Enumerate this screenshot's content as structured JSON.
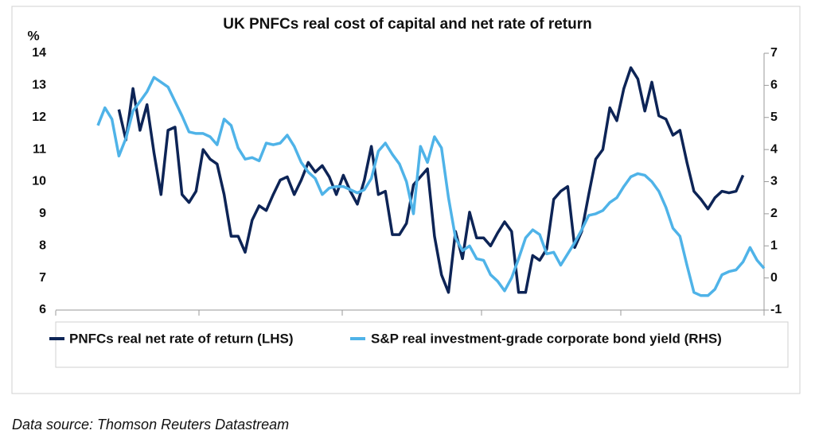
{
  "chart_data": {
    "type": "line",
    "title": "UK PNFCs real cost of capital and net rate of return",
    "ylabel": "%",
    "source": "Data source: Thomson Reuters Datastream",
    "categories": [
      null,
      null,
      null,
      null,
      null,
      null,
      null,
      null,
      null,
      null,
      null,
      null,
      null,
      null,
      null,
      null,
      null,
      null,
      null,
      null,
      null,
      null,
      null,
      null,
      null,
      null,
      null,
      null,
      null,
      null,
      null,
      null,
      null,
      null,
      null,
      null,
      null,
      null,
      null,
      null,
      null,
      null,
      null,
      null,
      null,
      null,
      null,
      null,
      null,
      null,
      null,
      null,
      null,
      null,
      null,
      null,
      null,
      null,
      null,
      null,
      null,
      null,
      null,
      null,
      null,
      null,
      null,
      null,
      null,
      null,
      null,
      null,
      null,
      null,
      null,
      null,
      null,
      null,
      null,
      null,
      null,
      null,
      null,
      null,
      null,
      null,
      null,
      null,
      null,
      null,
      null,
      null,
      null,
      null,
      null,
      null
    ],
    "ylim": [
      6,
      14
    ],
    "yticks": [
      6,
      7,
      8,
      9,
      10,
      11,
      12,
      13,
      14
    ],
    "y2lim": [
      -1,
      7
    ],
    "y2ticks": [
      -1,
      0,
      1,
      2,
      3,
      4,
      5,
      6,
      7
    ],
    "series": [
      {
        "name": "PNFCs real net rate of return (LHS)",
        "color": "#0d2456",
        "axis": "y",
        "values": [
          null,
          null,
          null,
          12.25,
          11.3,
          12.9,
          11.6,
          12.4,
          10.9,
          9.6,
          11.6,
          11.7,
          9.6,
          9.35,
          9.7,
          11.0,
          10.7,
          10.55,
          9.6,
          8.3,
          8.3,
          7.8,
          8.8,
          9.25,
          9.1,
          9.6,
          10.05,
          10.15,
          9.6,
          10.05,
          10.6,
          10.3,
          10.5,
          10.15,
          9.6,
          10.2,
          9.7,
          9.3,
          10.05,
          11.1,
          9.6,
          9.7,
          8.35,
          8.35,
          8.7,
          9.9,
          10.15,
          10.4,
          8.3,
          7.1,
          6.55,
          8.45,
          7.6,
          9.05,
          8.25,
          8.25,
          8.0,
          8.4,
          8.75,
          8.45,
          6.55,
          6.55,
          7.7,
          7.55,
          7.9,
          9.45,
          9.7,
          9.85,
          7.95,
          8.45,
          9.6,
          10.7,
          11.0,
          12.3,
          11.9,
          12.9,
          13.55,
          13.2,
          12.2,
          13.1,
          12.05,
          11.95,
          11.45,
          11.6,
          10.6,
          9.7,
          9.45,
          9.15,
          9.5,
          9.7,
          9.65,
          9.7,
          10.2,
          null,
          null,
          null
        ]
      },
      {
        "name": "S&P real investment-grade corporate bond yield (RHS)",
        "color": "#4fb3e8",
        "axis": "y2",
        "values": [
          4.75,
          5.3,
          4.95,
          3.8,
          4.35,
          5.2,
          5.5,
          5.8,
          6.25,
          6.1,
          5.95,
          5.5,
          5.05,
          4.55,
          4.5,
          4.5,
          4.4,
          4.15,
          4.95,
          4.75,
          4.05,
          3.7,
          3.75,
          3.65,
          4.2,
          4.15,
          4.2,
          4.45,
          4.1,
          3.6,
          3.3,
          3.1,
          2.6,
          2.8,
          2.85,
          2.85,
          2.75,
          2.65,
          2.75,
          3.1,
          3.95,
          4.2,
          3.85,
          3.55,
          3.0,
          2.0,
          4.1,
          3.6,
          4.4,
          4.05,
          2.5,
          1.25,
          0.85,
          1.0,
          0.6,
          0.55,
          0.1,
          -0.1,
          -0.4,
          0.0,
          0.6,
          1.25,
          1.5,
          1.35,
          0.75,
          0.8,
          0.4,
          0.75,
          1.1,
          1.5,
          1.95,
          2.0,
          2.1,
          2.35,
          2.5,
          2.85,
          3.15,
          3.25,
          3.2,
          3.0,
          2.7,
          2.2,
          1.55,
          1.3,
          0.4,
          -0.45,
          -0.55,
          -0.55,
          -0.35,
          0.1,
          0.2,
          0.25,
          0.5,
          0.95,
          0.55,
          0.3
        ]
      }
    ]
  }
}
